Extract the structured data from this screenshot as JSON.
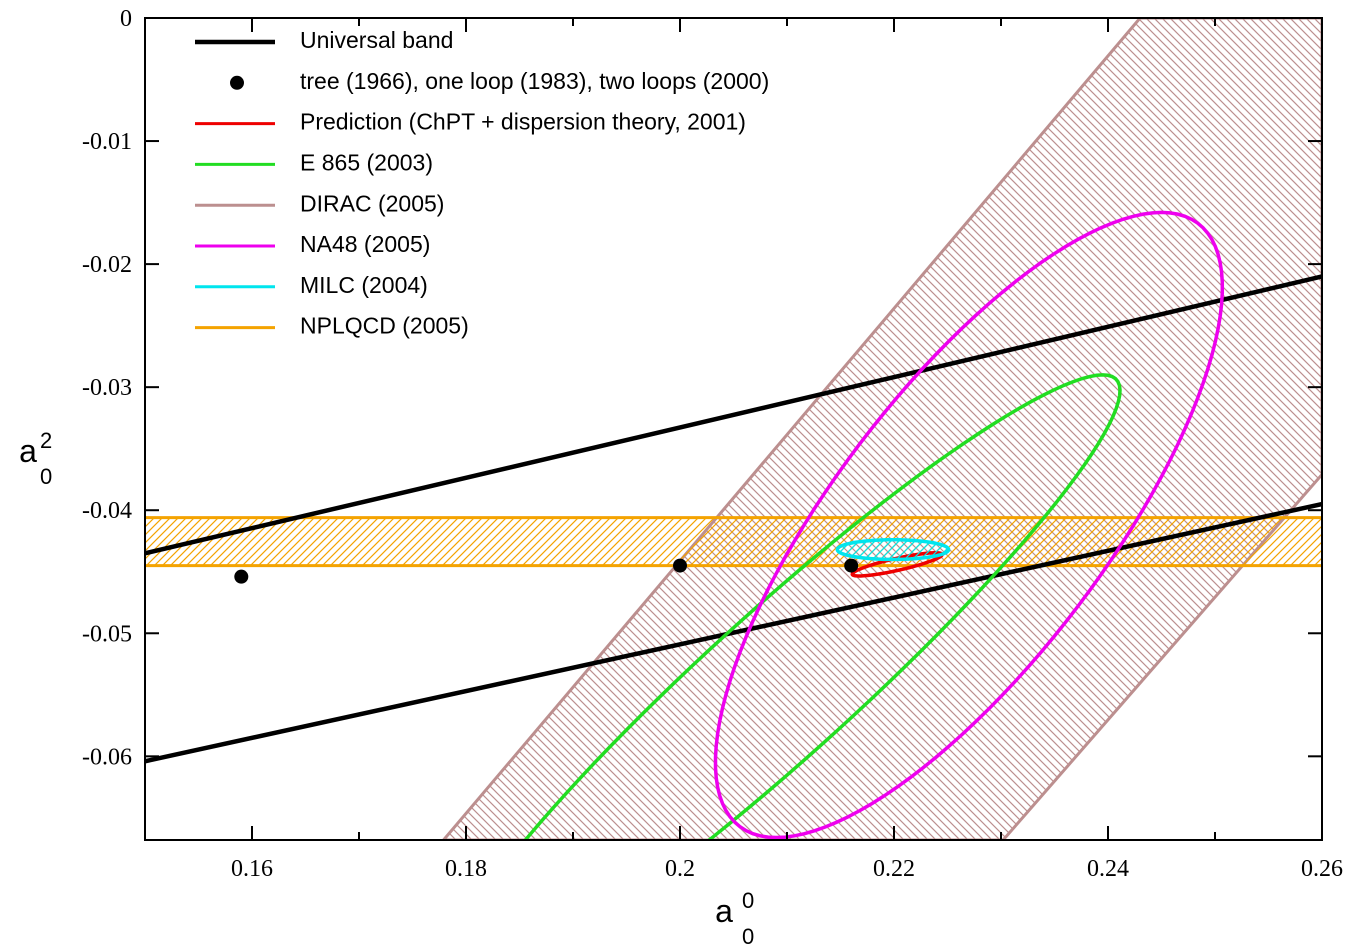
{
  "chart_data": {
    "type": "line",
    "xlabel": {
      "base": "a",
      "sup": "0",
      "sub": "0"
    },
    "ylabel": {
      "base": "a",
      "sup": "2",
      "sub": "0"
    },
    "xlim": [
      0.15,
      0.26
    ],
    "ylim": [
      -0.0668,
      0
    ],
    "xticks": [
      0.16,
      0.18,
      0.2,
      0.22,
      0.24,
      0.26
    ],
    "xminorticks": [
      0.17,
      0.19,
      0.21,
      0.23,
      0.25
    ],
    "yticks": [
      0,
      -0.01,
      -0.02,
      -0.03,
      -0.04,
      -0.05,
      -0.06
    ],
    "legend": "upper left",
    "series": [
      {
        "name": "Universal band",
        "type": "line",
        "color": "#000000",
        "lines": [
          {
            "x": [
              0.15,
              0.26
            ],
            "y": [
              -0.0435,
              -0.021
            ]
          },
          {
            "x": [
              0.15,
              0.26
            ],
            "y": [
              -0.0604,
              -0.0395
            ]
          }
        ]
      },
      {
        "name": "tree (1966), one loop (1983), two loops (2000)",
        "type": "scatter",
        "color": "#000000",
        "x": [
          0.159,
          0.2,
          0.216
        ],
        "y": [
          -0.0454,
          -0.0445,
          -0.0445
        ]
      },
      {
        "name": "Prediction (ChPT + dispersion theory, 2001)",
        "type": "ellipse",
        "color": "#ee0000",
        "center": [
          0.2203,
          -0.0444
        ],
        "u": [
          0.0042,
          0.0008
        ],
        "v": [
          0,
          0.0005
        ]
      },
      {
        "name": "E 865 (2003)",
        "type": "ellipse",
        "color": "#22dd22",
        "center": [
          0.2095,
          -0.054
        ],
        "u": [
          0.03,
          0.025
        ],
        "v": [
          0.01,
          0
        ]
      },
      {
        "name": "DIRAC (2005)",
        "type": "polygon",
        "color": "#bc8f8f",
        "hatch": true,
        "x": [
          0.1779,
          0.243,
          0.26,
          0.26,
          0.2302
        ],
        "y": [
          -0.0668,
          0,
          0,
          -0.0371,
          -0.0668
        ]
      },
      {
        "name": "NA48 (2005)",
        "type": "ellipse",
        "color": "#ee00ee",
        "center": [
          0.227,
          -0.0412
        ],
        "u": [
          0.018,
          0.0254
        ],
        "v": [
          0.0154,
          0
        ]
      },
      {
        "name": "MILC (2004)",
        "type": "ellipse",
        "color": "#00e5ee",
        "hatch": true,
        "center": [
          0.2199,
          -0.0432
        ],
        "u": [
          0.0052,
          0
        ],
        "v": [
          0,
          0.0008
        ]
      },
      {
        "name": "NPLQCD (2005)",
        "type": "hband",
        "color": "#f4a300",
        "hatch": true,
        "y": [
          -0.0445,
          -0.0406
        ]
      }
    ]
  }
}
